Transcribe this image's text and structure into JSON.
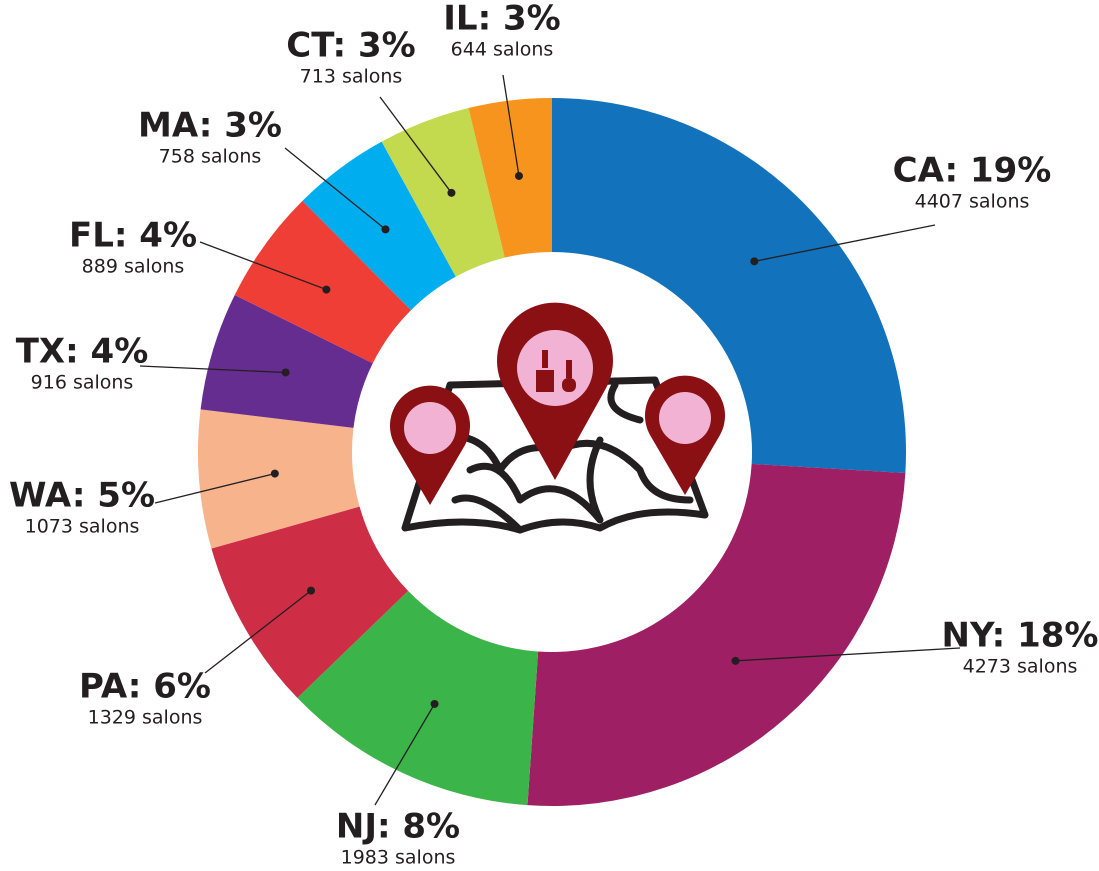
{
  "chart_data": {
    "type": "donut",
    "categories": [
      "CA: 19%",
      "NY: 18%",
      "NJ: 8%",
      "PA: 6%",
      "WA: 5%",
      "TX: 4%",
      "FL: 4%",
      "MA: 3%",
      "CT: 3%",
      "IL: 3%"
    ],
    "values": [
      4407,
      4273,
      1983,
      1329,
      1073,
      916,
      889,
      758,
      713,
      644
    ],
    "value_labels": [
      "4407 salons",
      "4273 salons",
      "1983 salons",
      "1329 salons",
      "1073 salons",
      "916 salons",
      "889 salons",
      "758 salons",
      "713 salons",
      "644 salons"
    ],
    "colors": [
      "#1272bc",
      "#9e1f63",
      "#3bb44a",
      "#cd2e45",
      "#f7b38b",
      "#662d91",
      "#ee3e35",
      "#00aeef",
      "#c3d94e",
      "#f7941d"
    ]
  }
}
